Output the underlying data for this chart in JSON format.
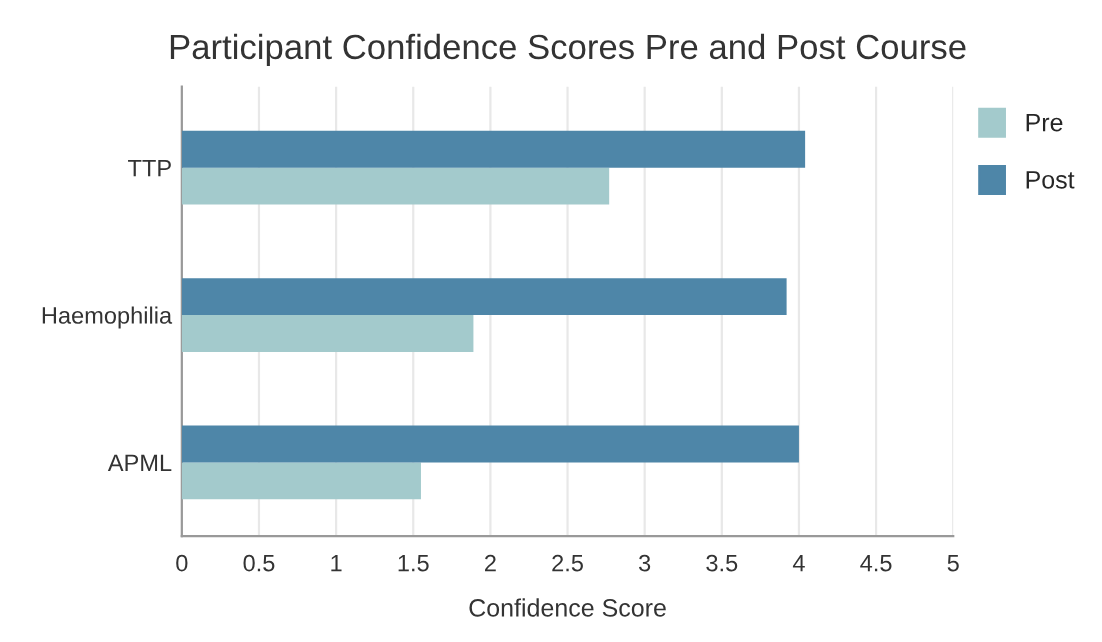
{
  "chart_data": {
    "type": "bar",
    "orientation": "horizontal",
    "title": "Participant Confidence Scores Pre and Post Course",
    "xlabel": "Confidence Score",
    "categories": [
      "TTP",
      "Haemophilia",
      "APML"
    ],
    "series": [
      {
        "name": "Pre",
        "color": "#a3cacc",
        "values": [
          2.77,
          1.89,
          1.55
        ]
      },
      {
        "name": "Post",
        "color": "#4e86a8",
        "values": [
          4.04,
          3.92,
          4.0
        ]
      }
    ],
    "xlim": [
      0,
      5
    ],
    "xticks": [
      0,
      0.5,
      1,
      1.5,
      2,
      2.5,
      3,
      3.5,
      4,
      4.5,
      5
    ],
    "grid": "x",
    "legend": "top right"
  }
}
